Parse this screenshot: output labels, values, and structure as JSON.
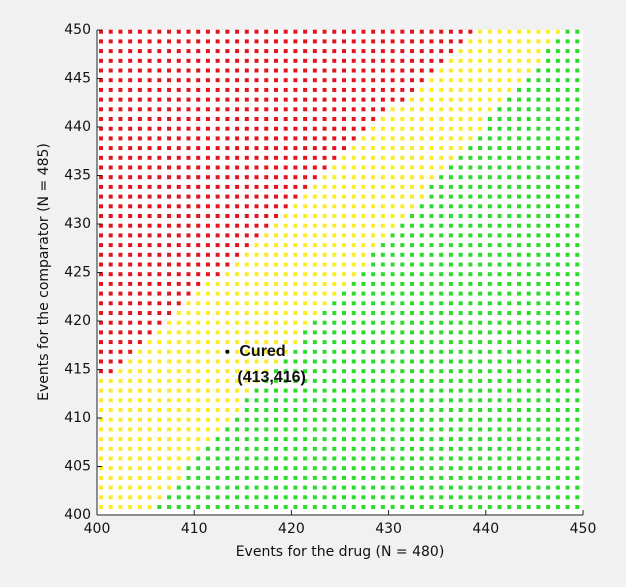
{
  "chart_data": {
    "type": "grid-scatter",
    "xlabel": "Events for the drug (N = 480)",
    "ylabel": "Events for the comparator (N = 485)",
    "x": [
      400,
      401,
      402,
      403,
      404,
      405,
      406,
      407,
      408,
      409,
      410,
      411,
      412,
      413,
      414,
      415,
      416,
      417,
      418,
      419,
      420,
      421,
      422,
      423,
      424,
      425,
      426,
      427,
      428,
      429,
      430,
      431,
      432,
      433,
      434,
      435,
      436,
      437,
      438,
      439,
      440,
      441,
      442,
      443,
      444,
      445,
      446,
      447,
      448,
      449
    ],
    "y": [
      400,
      401,
      402,
      403,
      404,
      405,
      406,
      407,
      408,
      409,
      410,
      411,
      412,
      413,
      414,
      415,
      416,
      417,
      418,
      419,
      420,
      421,
      422,
      423,
      424,
      425,
      426,
      427,
      428,
      429,
      430,
      431,
      432,
      433,
      434,
      435,
      436,
      437,
      438,
      439,
      440,
      441,
      442,
      443,
      444,
      445,
      446,
      447,
      448,
      449
    ],
    "red_max_x": [
      null,
      null,
      null,
      null,
      null,
      null,
      null,
      null,
      null,
      null,
      null,
      null,
      null,
      null,
      401,
      402,
      403,
      404,
      405,
      406,
      407,
      408,
      409,
      410,
      412,
      413,
      414,
      415,
      416,
      417,
      418,
      419,
      420,
      421,
      422,
      423,
      424,
      425,
      426,
      427,
      428,
      429,
      431,
      432,
      433,
      434,
      435,
      436,
      437,
      438
    ],
    "green_min_x": [
      406,
      407,
      408,
      409,
      409,
      410,
      411,
      412,
      413,
      414,
      415,
      415,
      416,
      417,
      418,
      419,
      420,
      421,
      421,
      422,
      423,
      424,
      425,
      426,
      427,
      428,
      428,
      429,
      430,
      431,
      432,
      433,
      434,
      434,
      435,
      436,
      437,
      438,
      439,
      440,
      440,
      441,
      442,
      443,
      444,
      445,
      446,
      446,
      447,
      448
    ],
    "colors": {
      "red": "#e3141c",
      "yellow": "#fbec27",
      "green": "#2ddb2d"
    },
    "annotation": {
      "text": "Cured",
      "coords": "(413,416)",
      "x": 413,
      "y": 416
    },
    "xlim": [
      400,
      450
    ],
    "ylim": [
      400,
      450
    ],
    "xticks": [
      400,
      410,
      420,
      430,
      440,
      450
    ],
    "yticks": [
      400,
      405,
      410,
      415,
      420,
      425,
      430,
      435,
      440,
      445,
      450
    ]
  }
}
